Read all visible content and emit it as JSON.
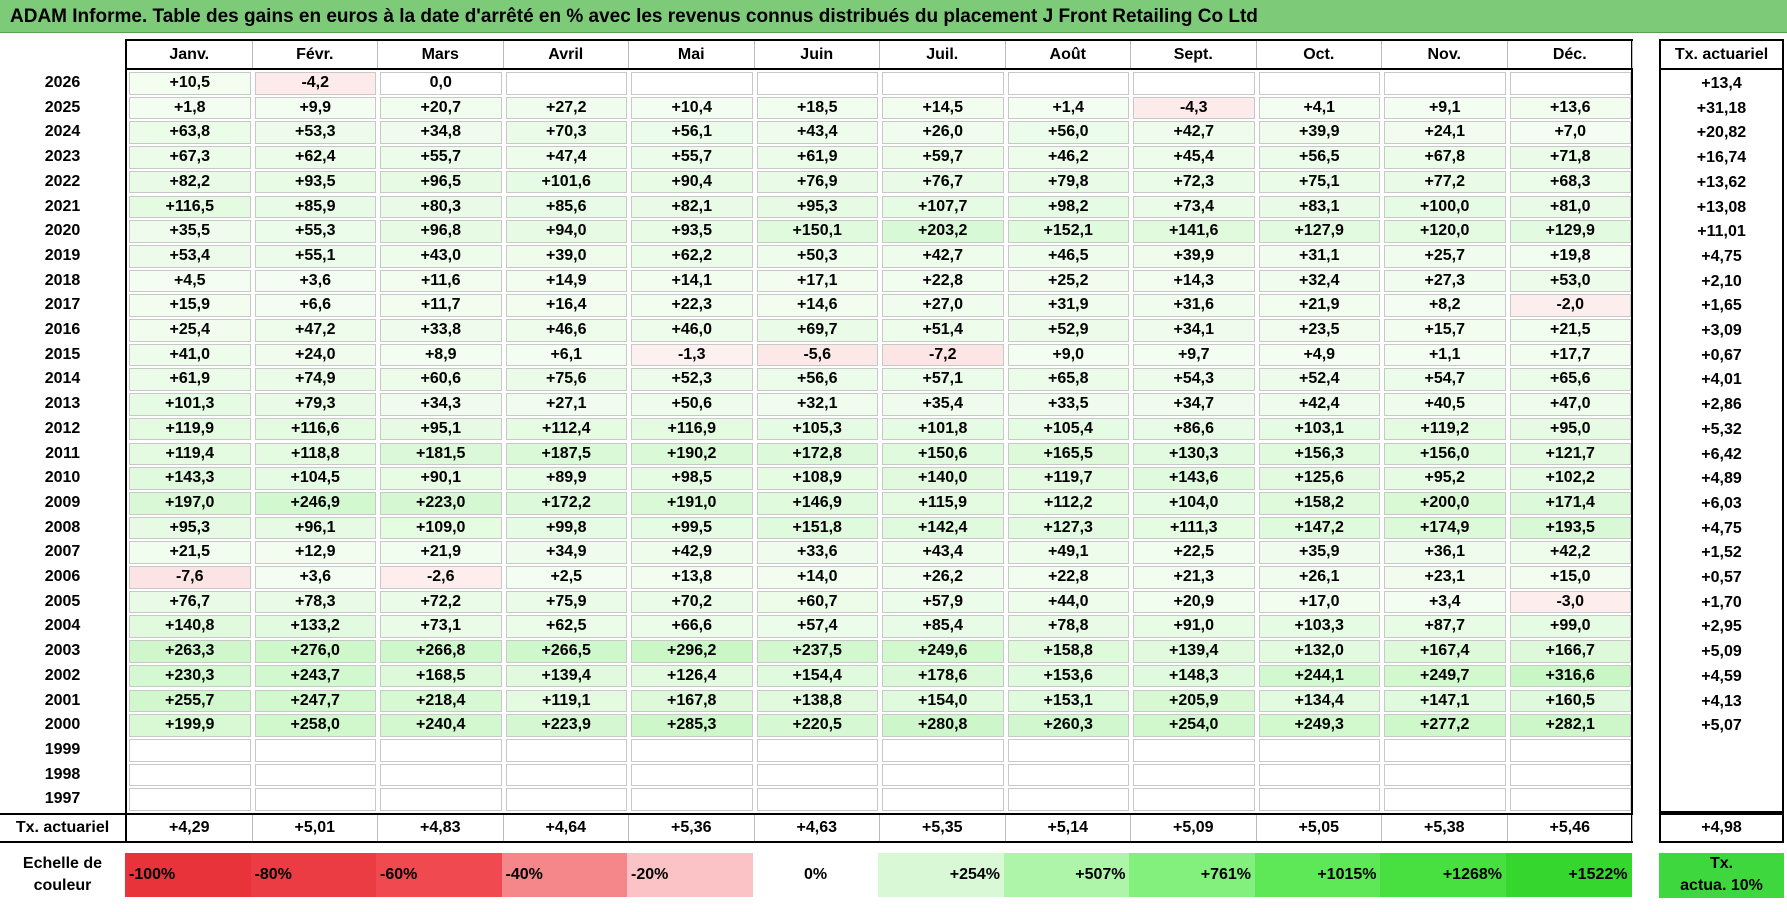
{
  "title": "ADAM Informe. Table des gains en euros à la date d'arrêté en % avec les revenus connus distribués du placement J Front Retailing Co Ltd",
  "months": [
    "Janv.",
    "Févr.",
    "Mars",
    "Avril",
    "Mai",
    "Juin",
    "Juil.",
    "Août",
    "Sept.",
    "Oct.",
    "Nov.",
    "Déc."
  ],
  "tx_header": "Tx. actuariel",
  "rows": [
    {
      "year": "2026",
      "values": [
        "+10,5",
        "-4,2",
        "0,0",
        "",
        "",
        "",
        "",
        "",
        "",
        "",
        "",
        ""
      ],
      "tx": "+13,4"
    },
    {
      "year": "2025",
      "values": [
        "+1,8",
        "+9,9",
        "+20,7",
        "+27,2",
        "+10,4",
        "+18,5",
        "+14,5",
        "+1,4",
        "-4,3",
        "+4,1",
        "+9,1",
        "+13,6"
      ],
      "tx": "+31,18"
    },
    {
      "year": "2024",
      "values": [
        "+63,8",
        "+53,3",
        "+34,8",
        "+70,3",
        "+56,1",
        "+43,4",
        "+26,0",
        "+56,0",
        "+42,7",
        "+39,9",
        "+24,1",
        "+7,0"
      ],
      "tx": "+20,82"
    },
    {
      "year": "2023",
      "values": [
        "+67,3",
        "+62,4",
        "+55,7",
        "+47,4",
        "+55,7",
        "+61,9",
        "+59,7",
        "+46,2",
        "+45,4",
        "+56,5",
        "+67,8",
        "+71,8"
      ],
      "tx": "+16,74"
    },
    {
      "year": "2022",
      "values": [
        "+82,2",
        "+93,5",
        "+96,5",
        "+101,6",
        "+90,4",
        "+76,9",
        "+76,7",
        "+79,8",
        "+72,3",
        "+75,1",
        "+77,2",
        "+68,3"
      ],
      "tx": "+13,62"
    },
    {
      "year": "2021",
      "values": [
        "+116,5",
        "+85,9",
        "+80,3",
        "+85,6",
        "+82,1",
        "+95,3",
        "+107,7",
        "+98,2",
        "+73,4",
        "+83,1",
        "+100,0",
        "+81,0"
      ],
      "tx": "+13,08"
    },
    {
      "year": "2020",
      "values": [
        "+35,5",
        "+55,3",
        "+96,8",
        "+94,0",
        "+93,5",
        "+150,1",
        "+203,2",
        "+152,1",
        "+141,6",
        "+127,9",
        "+120,0",
        "+129,9"
      ],
      "tx": "+11,01"
    },
    {
      "year": "2019",
      "values": [
        "+53,4",
        "+55,1",
        "+43,0",
        "+39,0",
        "+62,2",
        "+50,3",
        "+42,7",
        "+46,5",
        "+39,9",
        "+31,1",
        "+25,7",
        "+19,8"
      ],
      "tx": "+4,75"
    },
    {
      "year": "2018",
      "values": [
        "+4,5",
        "+3,6",
        "+11,6",
        "+14,9",
        "+14,1",
        "+17,1",
        "+22,8",
        "+25,2",
        "+14,3",
        "+32,4",
        "+27,3",
        "+53,0"
      ],
      "tx": "+2,10"
    },
    {
      "year": "2017",
      "values": [
        "+15,9",
        "+6,6",
        "+11,7",
        "+16,4",
        "+22,3",
        "+14,6",
        "+27,0",
        "+31,9",
        "+31,6",
        "+21,9",
        "+8,2",
        "-2,0"
      ],
      "tx": "+1,65"
    },
    {
      "year": "2016",
      "values": [
        "+25,4",
        "+47,2",
        "+33,8",
        "+46,6",
        "+46,0",
        "+69,7",
        "+51,4",
        "+52,9",
        "+34,1",
        "+23,5",
        "+15,7",
        "+21,5"
      ],
      "tx": "+3,09"
    },
    {
      "year": "2015",
      "values": [
        "+41,0",
        "+24,0",
        "+8,9",
        "+6,1",
        "-1,3",
        "-5,6",
        "-7,2",
        "+9,0",
        "+9,7",
        "+4,9",
        "+1,1",
        "+17,7"
      ],
      "tx": "+0,67"
    },
    {
      "year": "2014",
      "values": [
        "+61,9",
        "+74,9",
        "+60,6",
        "+75,6",
        "+52,3",
        "+56,6",
        "+57,1",
        "+65,8",
        "+54,3",
        "+52,4",
        "+54,7",
        "+65,6"
      ],
      "tx": "+4,01"
    },
    {
      "year": "2013",
      "values": [
        "+101,3",
        "+79,3",
        "+34,3",
        "+27,1",
        "+50,6",
        "+32,1",
        "+35,4",
        "+33,5",
        "+34,7",
        "+42,4",
        "+40,5",
        "+47,0"
      ],
      "tx": "+2,86"
    },
    {
      "year": "2012",
      "values": [
        "+119,9",
        "+116,6",
        "+95,1",
        "+112,4",
        "+116,9",
        "+105,3",
        "+101,8",
        "+105,4",
        "+86,6",
        "+103,1",
        "+119,2",
        "+95,0"
      ],
      "tx": "+5,32"
    },
    {
      "year": "2011",
      "values": [
        "+119,4",
        "+118,8",
        "+181,5",
        "+187,5",
        "+190,2",
        "+172,8",
        "+150,6",
        "+165,5",
        "+130,3",
        "+156,3",
        "+156,0",
        "+121,7"
      ],
      "tx": "+6,42"
    },
    {
      "year": "2010",
      "values": [
        "+143,3",
        "+104,5",
        "+90,1",
        "+89,9",
        "+98,5",
        "+108,9",
        "+140,0",
        "+119,7",
        "+143,6",
        "+125,6",
        "+95,2",
        "+102,2"
      ],
      "tx": "+4,89"
    },
    {
      "year": "2009",
      "values": [
        "+197,0",
        "+246,9",
        "+223,0",
        "+172,2",
        "+191,0",
        "+146,9",
        "+115,9",
        "+112,2",
        "+104,0",
        "+158,2",
        "+200,0",
        "+171,4"
      ],
      "tx": "+6,03"
    },
    {
      "year": "2008",
      "values": [
        "+95,3",
        "+96,1",
        "+109,0",
        "+99,8",
        "+99,5",
        "+151,8",
        "+142,4",
        "+127,3",
        "+111,3",
        "+147,2",
        "+174,9",
        "+193,5"
      ],
      "tx": "+4,75"
    },
    {
      "year": "2007",
      "values": [
        "+21,5",
        "+12,9",
        "+21,9",
        "+34,9",
        "+42,9",
        "+33,6",
        "+43,4",
        "+49,1",
        "+22,5",
        "+35,9",
        "+36,1",
        "+42,2"
      ],
      "tx": "+1,52"
    },
    {
      "year": "2006",
      "values": [
        "-7,6",
        "+3,6",
        "-2,6",
        "+2,5",
        "+13,8",
        "+14,0",
        "+26,2",
        "+22,8",
        "+21,3",
        "+26,1",
        "+23,1",
        "+15,0"
      ],
      "tx": "+0,57"
    },
    {
      "year": "2005",
      "values": [
        "+76,7",
        "+78,3",
        "+72,2",
        "+75,9",
        "+70,2",
        "+60,7",
        "+57,9",
        "+44,0",
        "+20,9",
        "+17,0",
        "+3,4",
        "-3,0"
      ],
      "tx": "+1,70"
    },
    {
      "year": "2004",
      "values": [
        "+140,8",
        "+133,2",
        "+73,1",
        "+62,5",
        "+66,6",
        "+57,4",
        "+85,4",
        "+78,8",
        "+91,0",
        "+103,3",
        "+87,7",
        "+99,0"
      ],
      "tx": "+2,95"
    },
    {
      "year": "2003",
      "values": [
        "+263,3",
        "+276,0",
        "+266,8",
        "+266,5",
        "+296,2",
        "+237,5",
        "+249,6",
        "+158,8",
        "+139,4",
        "+132,0",
        "+167,4",
        "+166,7"
      ],
      "tx": "+5,09"
    },
    {
      "year": "2002",
      "values": [
        "+230,3",
        "+243,7",
        "+168,5",
        "+139,4",
        "+126,4",
        "+154,4",
        "+178,6",
        "+153,6",
        "+148,3",
        "+244,1",
        "+249,7",
        "+316,6"
      ],
      "tx": "+4,59"
    },
    {
      "year": "2001",
      "values": [
        "+255,7",
        "+247,7",
        "+218,4",
        "+119,1",
        "+167,8",
        "+138,8",
        "+154,0",
        "+153,1",
        "+205,9",
        "+134,4",
        "+147,1",
        "+160,5"
      ],
      "tx": "+4,13"
    },
    {
      "year": "2000",
      "values": [
        "+199,9",
        "+258,0",
        "+240,4",
        "+223,9",
        "+285,3",
        "+220,5",
        "+280,8",
        "+260,3",
        "+254,0",
        "+249,3",
        "+277,2",
        "+282,1"
      ],
      "tx": "+5,07"
    },
    {
      "year": "1999",
      "values": [
        "",
        "",
        "",
        "",
        "",
        "",
        "",
        "",
        "",
        "",
        "",
        ""
      ],
      "tx": ""
    },
    {
      "year": "1998",
      "values": [
        "",
        "",
        "",
        "",
        "",
        "",
        "",
        "",
        "",
        "",
        "",
        ""
      ],
      "tx": ""
    },
    {
      "year": "1997",
      "values": [
        "",
        "",
        "",
        "",
        "",
        "",
        "",
        "",
        "",
        "",
        "",
        ""
      ],
      "tx": ""
    }
  ],
  "footer": {
    "label": "Tx. actuariel",
    "values": [
      "+4,29",
      "+5,01",
      "+4,83",
      "+4,64",
      "+5,36",
      "+4,63",
      "+5,35",
      "+5,14",
      "+5,09",
      "+5,05",
      "+5,38",
      "+5,46"
    ],
    "tx": "+4,98"
  },
  "legend": {
    "label_line1": "Echelle de",
    "label_line2": "couleur",
    "items": [
      {
        "text": "-100%",
        "color": "#e8333b",
        "align": "left"
      },
      {
        "text": "-80%",
        "color": "#ec3c43",
        "align": "left"
      },
      {
        "text": "-60%",
        "color": "#f04a50",
        "align": "left"
      },
      {
        "text": "-40%",
        "color": "#f5878b",
        "align": "left"
      },
      {
        "text": "-20%",
        "color": "#fbc3c5",
        "align": "left"
      },
      {
        "text": "0%",
        "color": "#ffffff",
        "align": "center"
      },
      {
        "text": "+254%",
        "color": "#d8f8d6",
        "align": "right"
      },
      {
        "text": "+507%",
        "color": "#aef4a9",
        "align": "right"
      },
      {
        "text": "+761%",
        "color": "#83ef7c",
        "align": "right"
      },
      {
        "text": "+1015%",
        "color": "#5ee858",
        "align": "right"
      },
      {
        "text": "+1268%",
        "color": "#47e040",
        "align": "right"
      },
      {
        "text": "+1522%",
        "color": "#35d72e",
        "align": "right"
      }
    ],
    "tx_line1": "Tx.",
    "tx_line2": "actua. 10%"
  }
}
